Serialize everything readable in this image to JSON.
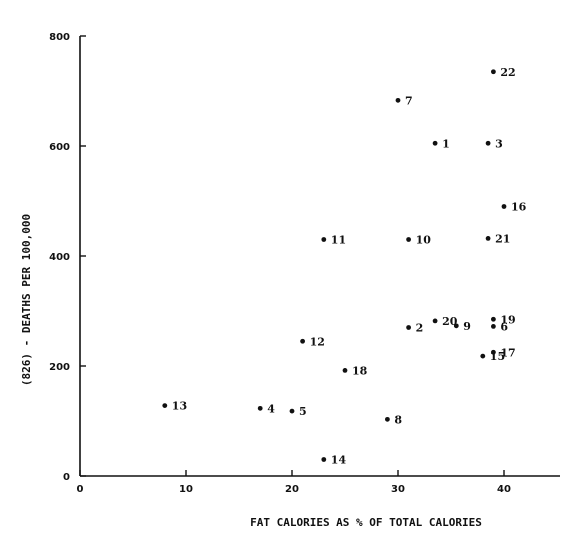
{
  "chart_data": {
    "type": "scatter",
    "xlabel": "FAT CALORIES AS % OF TOTAL CALORIES",
    "ylabel": "(826) - DEATHS PER 100,000",
    "xlim": [
      0,
      42
    ],
    "ylim": [
      0,
      800
    ],
    "xticks": [
      0,
      10,
      20,
      30,
      40
    ],
    "yticks": [
      0,
      200,
      400,
      600,
      800
    ],
    "grid": false,
    "points": [
      {
        "label": "1",
        "x": 33.5,
        "y": 605
      },
      {
        "label": "2",
        "x": 31.0,
        "y": 270
      },
      {
        "label": "3",
        "x": 38.5,
        "y": 605
      },
      {
        "label": "4",
        "x": 17.0,
        "y": 123
      },
      {
        "label": "5",
        "x": 20.0,
        "y": 118
      },
      {
        "label": "6",
        "x": 39.0,
        "y": 272
      },
      {
        "label": "7",
        "x": 30.0,
        "y": 683
      },
      {
        "label": "8",
        "x": 29.0,
        "y": 103
      },
      {
        "label": "9",
        "x": 35.5,
        "y": 273
      },
      {
        "label": "10",
        "x": 31.0,
        "y": 430
      },
      {
        "label": "11",
        "x": 23.0,
        "y": 430
      },
      {
        "label": "12",
        "x": 21.0,
        "y": 245
      },
      {
        "label": "13",
        "x": 8.0,
        "y": 128
      },
      {
        "label": "14",
        "x": 23.0,
        "y": 30
      },
      {
        "label": "15",
        "x": 38.0,
        "y": 218
      },
      {
        "label": "16",
        "x": 40.0,
        "y": 490
      },
      {
        "label": "17",
        "x": 39.0,
        "y": 225
      },
      {
        "label": "18",
        "x": 25.0,
        "y": 192
      },
      {
        "label": "19",
        "x": 39.0,
        "y": 285
      },
      {
        "label": "20",
        "x": 33.5,
        "y": 282
      },
      {
        "label": "21",
        "x": 38.5,
        "y": 432
      },
      {
        "label": "22",
        "x": 39.0,
        "y": 735
      }
    ]
  }
}
